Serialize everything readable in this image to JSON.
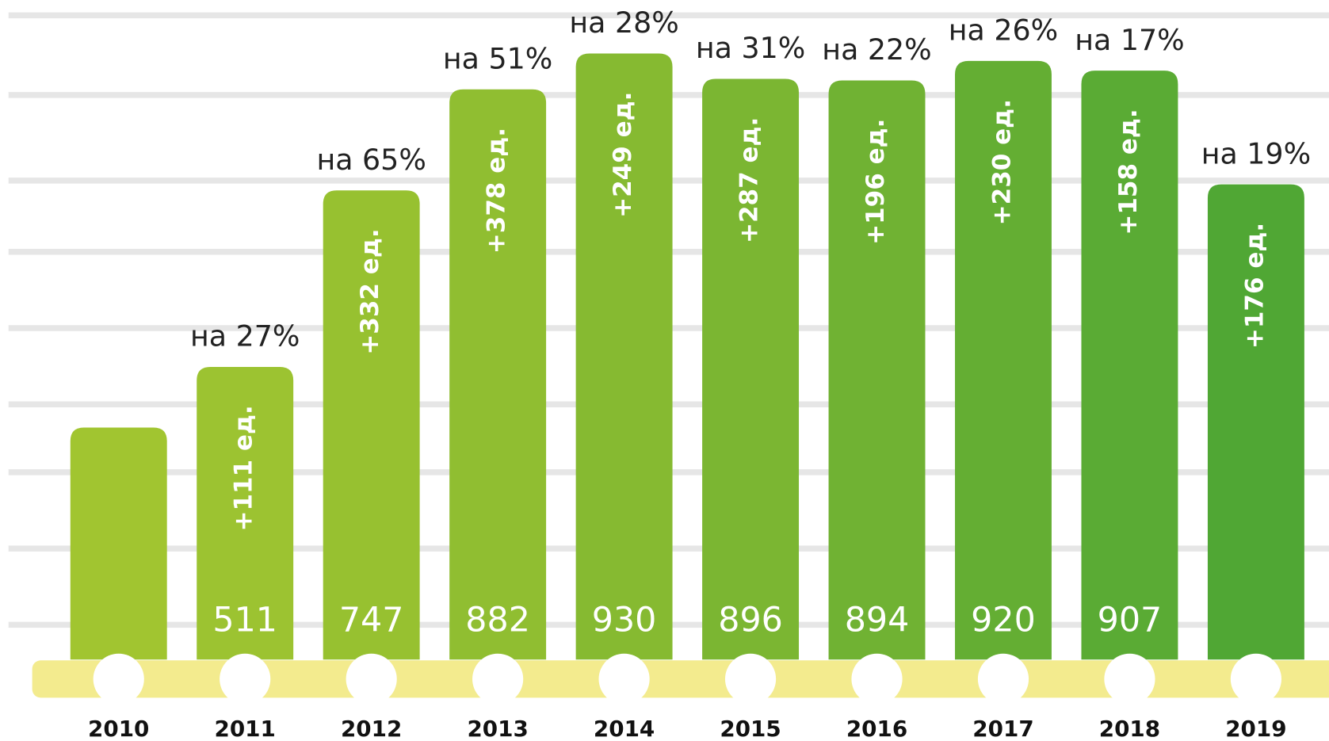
{
  "chart_data": {
    "type": "bar",
    "categories": [
      "2010",
      "2011",
      "2012",
      "2013",
      "2014",
      "2015",
      "2016",
      "2017",
      "2018",
      "2019"
    ],
    "values": [
      430,
      511,
      747,
      882,
      930,
      896,
      894,
      920,
      907,
      755
    ],
    "value_labels": [
      null,
      "511",
      "747",
      "882",
      "930",
      "896",
      "894",
      "920",
      "907",
      null
    ],
    "increments": [
      null,
      "+111 ед.",
      "+332 ед.",
      "+378 ед.",
      "+249 ед.",
      "+287 ед.",
      "+196 ед.",
      "+230 ед.",
      "+158 ед.",
      "+176 ед."
    ],
    "growth": [
      null,
      "на 27%",
      "на 65%",
      "на 51%",
      "на 28%",
      "на 31%",
      "на 22%",
      "на 26%",
      "на 17%",
      "на 19%"
    ],
    "colors": [
      "#a1c530",
      "#9cc331",
      "#97c130",
      "#90be31",
      "#86ba31",
      "#7bb632",
      "#70b233",
      "#64ae33",
      "#5aab34",
      "#50a734"
    ],
    "ylim": [
      120,
      956
    ]
  }
}
